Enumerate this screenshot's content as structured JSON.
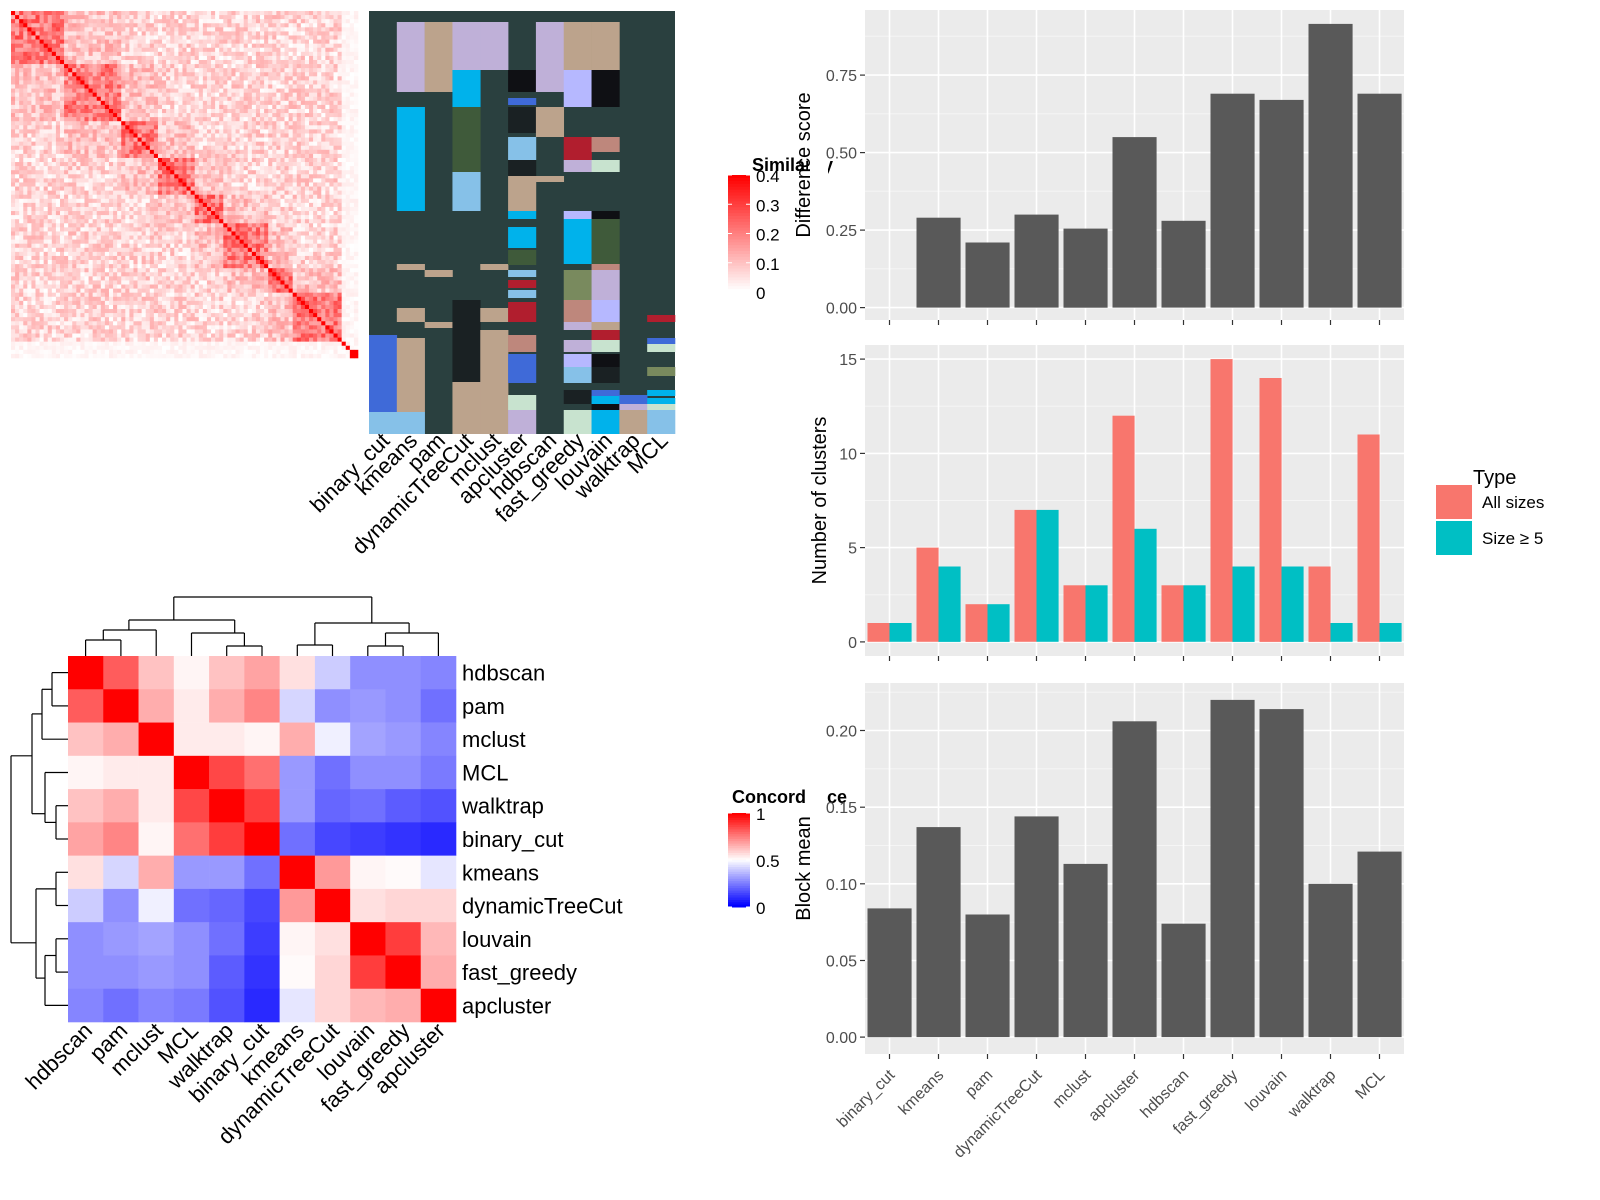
{
  "chart_data": [
    {
      "type": "heatmap",
      "panel": "similarity-heatmap",
      "legend_title": "Similarity",
      "legend_ticks": [
        "0.4",
        "0.3",
        "0.2",
        "0.1",
        "0"
      ],
      "value_range": [
        0,
        0.4
      ],
      "n_terms": 85,
      "colors": {
        "low": "#ffffff",
        "high": "#ff0000"
      }
    },
    {
      "type": "heatmap",
      "panel": "cluster-membership",
      "columns": [
        "binary_cut",
        "kmeans",
        "pam",
        "dynamicTreeCut",
        "mclust",
        "apcluster",
        "hdbscan",
        "fast_greedy",
        "louvain",
        "walktrap",
        "MCL"
      ],
      "background_color": "#2A403F"
    },
    {
      "type": "heatmap",
      "panel": "concordance-heatmap",
      "legend_title": "Concordance",
      "legend_ticks": [
        "1",
        "0.5",
        "0"
      ],
      "value_range": [
        0,
        1
      ],
      "colors": {
        "low": "#0000ff",
        "mid": "#ffffff",
        "high": "#ff0000"
      },
      "row_labels": [
        "hdbscan",
        "pam",
        "mclust",
        "MCL",
        "walktrap",
        "binary_cut",
        "kmeans",
        "dynamicTreeCut",
        "louvain",
        "fast_greedy",
        "apcluster"
      ],
      "col_labels": [
        "hdbscan",
        "pam",
        "mclust",
        "MCL",
        "walktrap",
        "binary_cut",
        "kmeans",
        "dynamicTreeCut",
        "louvain",
        "fast_greedy",
        "apcluster"
      ],
      "values": [
        [
          1.0,
          0.82,
          0.62,
          0.52,
          0.62,
          0.68,
          0.56,
          0.4,
          0.28,
          0.28,
          0.26
        ],
        [
          0.82,
          1.0,
          0.66,
          0.54,
          0.66,
          0.74,
          0.42,
          0.28,
          0.3,
          0.28,
          0.22
        ],
        [
          0.62,
          0.66,
          1.0,
          0.54,
          0.54,
          0.52,
          0.66,
          0.47,
          0.32,
          0.3,
          0.26
        ],
        [
          0.52,
          0.54,
          0.54,
          1.0,
          0.86,
          0.78,
          0.3,
          0.22,
          0.28,
          0.28,
          0.24
        ],
        [
          0.62,
          0.66,
          0.54,
          0.86,
          1.0,
          0.88,
          0.3,
          0.2,
          0.22,
          0.18,
          0.16
        ],
        [
          0.68,
          0.74,
          0.52,
          0.78,
          0.88,
          1.0,
          0.22,
          0.14,
          0.12,
          0.1,
          0.08
        ],
        [
          0.56,
          0.42,
          0.66,
          0.3,
          0.3,
          0.22,
          1.0,
          0.7,
          0.52,
          0.51,
          0.45
        ],
        [
          0.4,
          0.28,
          0.47,
          0.22,
          0.2,
          0.14,
          0.7,
          1.0,
          0.56,
          0.58,
          0.58
        ],
        [
          0.28,
          0.3,
          0.32,
          0.28,
          0.22,
          0.12,
          0.52,
          0.56,
          1.0,
          0.88,
          0.64
        ],
        [
          0.28,
          0.28,
          0.3,
          0.28,
          0.18,
          0.1,
          0.51,
          0.58,
          0.88,
          1.0,
          0.66
        ],
        [
          0.26,
          0.22,
          0.26,
          0.24,
          0.16,
          0.08,
          0.45,
          0.58,
          0.64,
          0.66,
          1.0
        ]
      ]
    },
    {
      "type": "bar",
      "panel": "difference-score",
      "categories": [
        "binary_cut",
        "kmeans",
        "pam",
        "dynamicTreeCut",
        "mclust",
        "apcluster",
        "hdbscan",
        "fast_greedy",
        "louvain",
        "walktrap",
        "MCL"
      ],
      "values": [
        0.0,
        0.29,
        0.21,
        0.3,
        0.255,
        0.55,
        0.28,
        0.69,
        0.67,
        0.915,
        0.69
      ],
      "ylabel": "Difference score",
      "ylim": [
        -0.04,
        0.96
      ],
      "yticks": [
        0.0,
        0.25,
        0.5,
        0.75
      ],
      "ytick_labels": [
        "0.00",
        "0.25",
        "0.50",
        "0.75"
      ],
      "bar_color": "#595959",
      "grid": true
    },
    {
      "type": "bar",
      "panel": "number-of-clusters",
      "categories": [
        "binary_cut",
        "kmeans",
        "pam",
        "dynamicTreeCut",
        "mclust",
        "apcluster",
        "hdbscan",
        "fast_greedy",
        "louvain",
        "walktrap",
        "MCL"
      ],
      "series": [
        {
          "name": "All sizes",
          "values": [
            1,
            5,
            2,
            7,
            3,
            12,
            3,
            15,
            14,
            4,
            11
          ],
          "color": "#F8766D"
        },
        {
          "name": "Size ≥ 5",
          "values": [
            1,
            4,
            2,
            7,
            3,
            6,
            3,
            4,
            4,
            1,
            1
          ],
          "color": "#00BFC4"
        }
      ],
      "ylabel": "Number of clusters",
      "ylim": [
        -0.75,
        15.75
      ],
      "yticks": [
        0,
        5,
        10,
        15
      ],
      "ytick_labels": [
        "0",
        "5",
        "10",
        "15"
      ],
      "legend_title": "Type",
      "legend_position": "right",
      "grid": true
    },
    {
      "type": "bar",
      "panel": "block-mean",
      "categories": [
        "binary_cut",
        "kmeans",
        "pam",
        "dynamicTreeCut",
        "mclust",
        "apcluster",
        "hdbscan",
        "fast_greedy",
        "louvain",
        "walktrap",
        "MCL"
      ],
      "values": [
        0.084,
        0.137,
        0.08,
        0.144,
        0.113,
        0.206,
        0.074,
        0.22,
        0.214,
        0.1,
        0.121
      ],
      "ylabel": "Block mean",
      "ylim": [
        -0.011,
        0.231
      ],
      "yticks": [
        0.0,
        0.05,
        0.1,
        0.15,
        0.2
      ],
      "ytick_labels": [
        "0.00",
        "0.05",
        "0.10",
        "0.15",
        "0.20"
      ],
      "bar_color": "#595959",
      "grid": true
    }
  ]
}
